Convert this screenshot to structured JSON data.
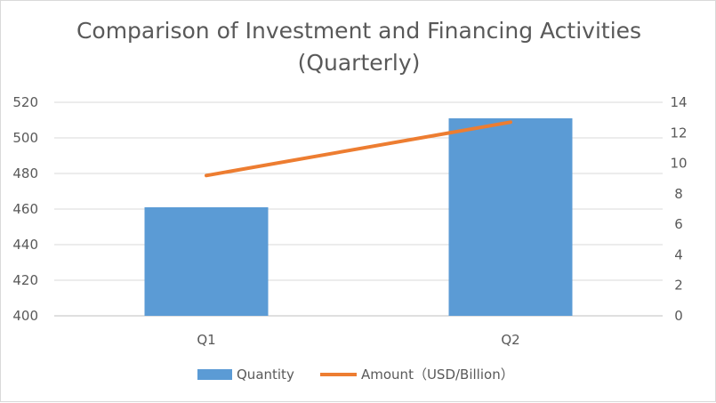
{
  "chart_data": {
    "type": "bar",
    "title": "Comparison of Investment and Financing Activities (Quarterly)",
    "title_lines": [
      "Comparison of Investment and Financing Activities",
      "(Quarterly)"
    ],
    "categories": [
      "Q1",
      "Q2"
    ],
    "series": [
      {
        "name": "Quantity",
        "type": "bar",
        "axis": "left",
        "values": [
          461,
          511
        ],
        "color": "#5b9bd5"
      },
      {
        "name": "Amount（USD/Billion）",
        "type": "line",
        "axis": "right",
        "values": [
          9.2,
          12.7
        ],
        "color": "#ed7d31"
      }
    ],
    "y_left": {
      "ylim": [
        400,
        520
      ],
      "ticks": [
        400,
        420,
        440,
        460,
        480,
        500,
        520
      ]
    },
    "y_right": {
      "ylim": [
        0,
        14
      ],
      "ticks": [
        0,
        2,
        4,
        6,
        8,
        10,
        12,
        14
      ]
    },
    "grid": true,
    "legend_position": "bottom"
  }
}
